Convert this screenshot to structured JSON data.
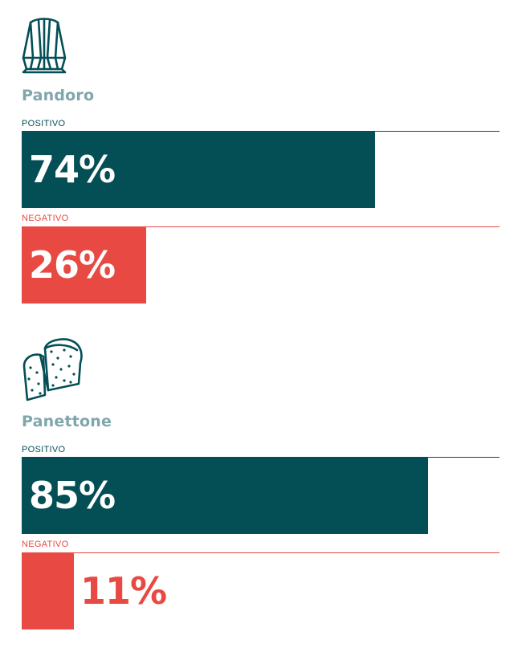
{
  "colors": {
    "positive": "#044e56",
    "negative": "#e84a43",
    "name": "#7fa6ab",
    "on_bar_text": "#ffffff"
  },
  "chart_data": [
    {
      "type": "bar",
      "orientation": "horizontal",
      "name": "Pandoro",
      "icon": "pandoro-cake-icon",
      "categories": [
        "POSITIVO",
        "NEGATIVO"
      ],
      "values": [
        74,
        26
      ],
      "value_labels": [
        "74%",
        "26%"
      ],
      "xlim": [
        0,
        100
      ]
    },
    {
      "type": "bar",
      "orientation": "horizontal",
      "name": "Panettone",
      "icon": "panettone-cake-icon",
      "categories": [
        "POSITIVO",
        "NEGATIVO"
      ],
      "values": [
        85,
        11
      ],
      "value_labels": [
        "85%",
        "11%"
      ],
      "xlim": [
        0,
        100
      ]
    }
  ]
}
